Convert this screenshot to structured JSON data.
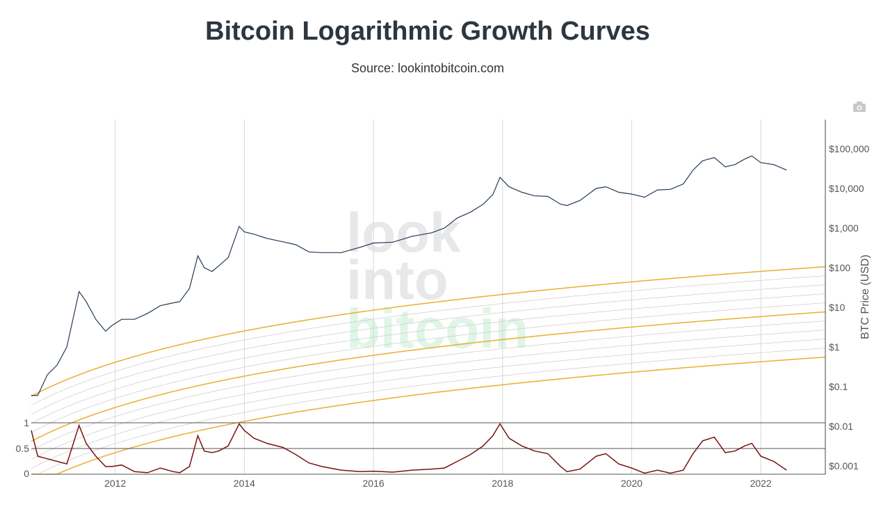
{
  "title": "Bitcoin Logarithmic Growth Curves",
  "subtitle": "Source: lookintobitcoin.com",
  "toolbar": {
    "icon": "camera-icon"
  },
  "watermark": {
    "line1": "look",
    "line2": "into",
    "line3": "bitcoin"
  },
  "colors": {
    "band": "#e8b33a",
    "price": "#233a52",
    "oscillator": "#7a1010",
    "grid": "#d8d8d8"
  },
  "chart_data": [
    {
      "type": "line",
      "yscale": "log",
      "ylabel": "BTC Price (USD)",
      "ytick_labels": [
        "$100,000",
        "$10,000",
        "$1,000",
        "$100",
        "$10",
        "$1",
        "$0.1",
        "$0.01",
        "$0.001"
      ],
      "ytick_values": [
        100000,
        10000,
        1000,
        100,
        10,
        1,
        0.1,
        0.01,
        0.001
      ],
      "xtick_labels": [
        "2012",
        "2014",
        "2016",
        "2018",
        "2020",
        "2022"
      ],
      "xtick_values": [
        2012,
        2014,
        2016,
        2018,
        2020,
        2022
      ],
      "xlim": [
        2010.7,
        2023.0
      ],
      "series": [
        {
          "role": "price",
          "x": [
            2010.7,
            2010.8,
            2010.95,
            2011.1,
            2011.25,
            2011.44,
            2011.55,
            2011.7,
            2011.85,
            2011.95,
            2012.1,
            2012.3,
            2012.5,
            2012.7,
            2012.9,
            2013.0,
            2013.15,
            2013.28,
            2013.38,
            2013.5,
            2013.6,
            2013.75,
            2013.92,
            2014.0,
            2014.15,
            2014.35,
            2014.6,
            2014.8,
            2015.0,
            2015.2,
            2015.5,
            2015.8,
            2016.0,
            2016.3,
            2016.6,
            2016.9,
            2017.1,
            2017.3,
            2017.5,
            2017.7,
            2017.85,
            2017.96,
            2018.1,
            2018.3,
            2018.5,
            2018.7,
            2018.9,
            2019.0,
            2019.2,
            2019.45,
            2019.6,
            2019.8,
            2020.0,
            2020.2,
            2020.4,
            2020.6,
            2020.8,
            2020.95,
            2021.1,
            2021.28,
            2021.45,
            2021.6,
            2021.75,
            2021.86,
            2022.0,
            2022.2,
            2022.4
          ],
          "y": [
            0.06,
            0.06,
            0.2,
            0.35,
            1.0,
            25,
            14,
            5,
            2.5,
            3.5,
            5,
            5,
            7,
            11,
            13,
            14,
            30,
            200,
            100,
            80,
            110,
            180,
            1100,
            800,
            700,
            550,
            450,
            380,
            250,
            240,
            240,
            330,
            420,
            440,
            620,
            760,
            1000,
            1800,
            2500,
            4000,
            7000,
            19000,
            11000,
            8000,
            6500,
            6300,
            4000,
            3700,
            5000,
            10000,
            11000,
            8000,
            7200,
            6000,
            9200,
            9500,
            13000,
            29000,
            50000,
            60000,
            35000,
            40000,
            55000,
            66000,
            45000,
            40000,
            29000
          ]
        },
        {
          "role": "oscillator",
          "ylim": [
            0,
            1
          ],
          "ytick_labels": [
            "1",
            "0.5",
            "0"
          ],
          "ytick_values": [
            1,
            0.5,
            0
          ],
          "x": [
            2010.7,
            2010.8,
            2010.95,
            2011.1,
            2011.25,
            2011.44,
            2011.55,
            2011.7,
            2011.85,
            2011.95,
            2012.1,
            2012.3,
            2012.5,
            2012.7,
            2012.9,
            2013.0,
            2013.15,
            2013.28,
            2013.38,
            2013.5,
            2013.6,
            2013.75,
            2013.92,
            2014.0,
            2014.15,
            2014.35,
            2014.6,
            2014.8,
            2015.0,
            2015.2,
            2015.5,
            2015.8,
            2016.0,
            2016.3,
            2016.6,
            2016.9,
            2017.1,
            2017.3,
            2017.5,
            2017.7,
            2017.85,
            2017.96,
            2018.1,
            2018.3,
            2018.5,
            2018.7,
            2018.9,
            2019.0,
            2019.2,
            2019.45,
            2019.6,
            2019.8,
            2020.0,
            2020.2,
            2020.4,
            2020.6,
            2020.8,
            2020.95,
            2021.1,
            2021.28,
            2021.45,
            2021.6,
            2021.75,
            2021.86,
            2022.0,
            2022.2,
            2022.4
          ],
          "y": [
            0.85,
            0.35,
            0.3,
            0.25,
            0.2,
            0.95,
            0.6,
            0.35,
            0.15,
            0.15,
            0.18,
            0.05,
            0.03,
            0.12,
            0.05,
            0.03,
            0.15,
            0.75,
            0.45,
            0.42,
            0.45,
            0.55,
            0.98,
            0.85,
            0.7,
            0.6,
            0.52,
            0.38,
            0.22,
            0.15,
            0.08,
            0.05,
            0.06,
            0.04,
            0.08,
            0.1,
            0.12,
            0.25,
            0.38,
            0.55,
            0.75,
            0.98,
            0.7,
            0.55,
            0.45,
            0.4,
            0.15,
            0.05,
            0.1,
            0.35,
            0.4,
            0.2,
            0.12,
            0.02,
            0.08,
            0.02,
            0.08,
            0.4,
            0.65,
            0.72,
            0.42,
            0.45,
            0.55,
            0.6,
            0.35,
            0.25,
            0.08
          ]
        }
      ]
    }
  ]
}
